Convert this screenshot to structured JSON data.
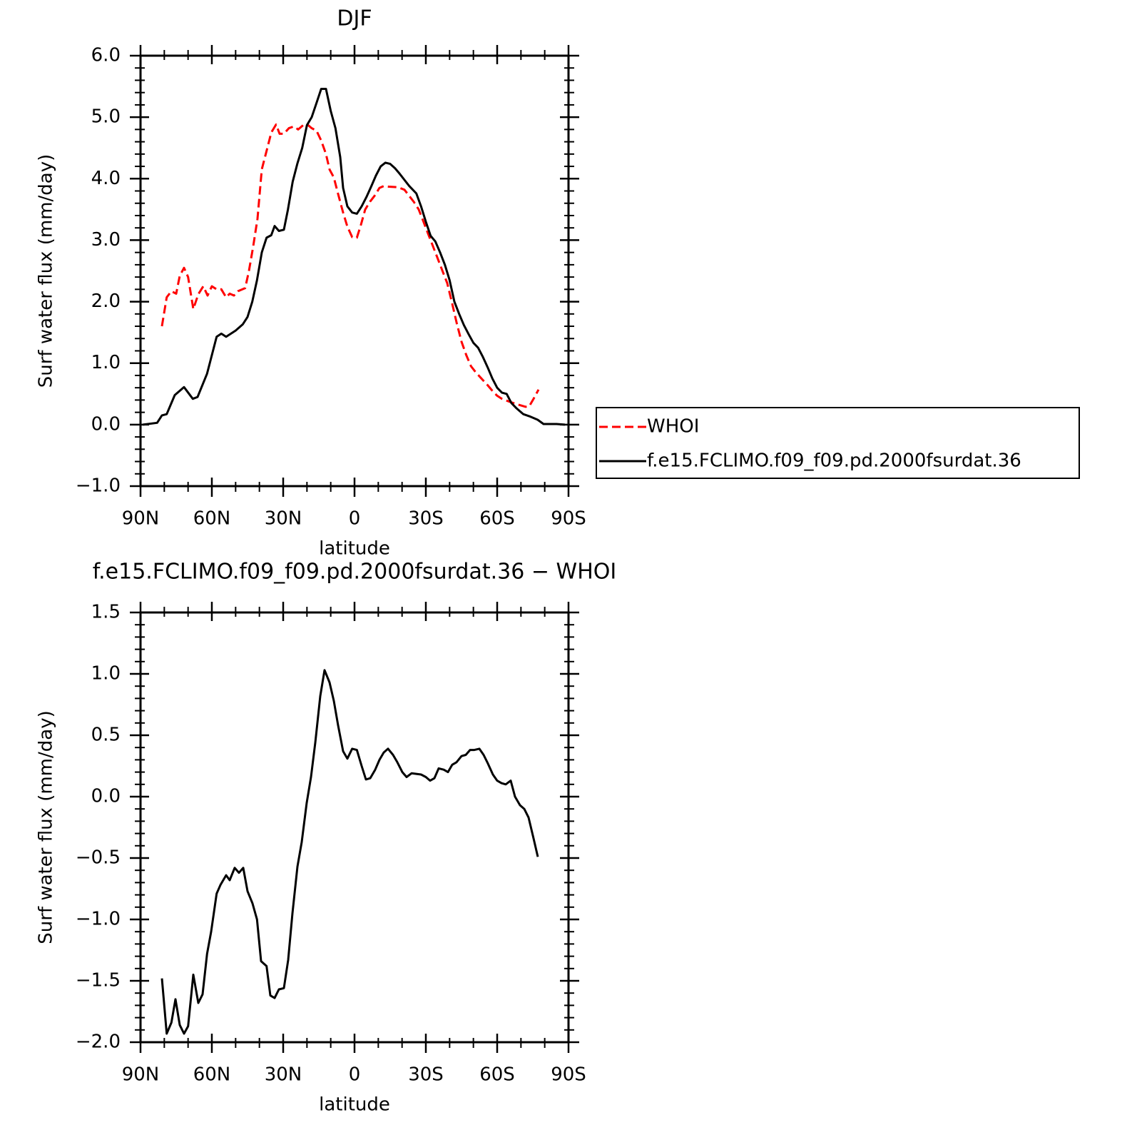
{
  "chart_data": [
    {
      "type": "line",
      "title": "DJF",
      "xlabel": "latitude",
      "ylabel": "Surf water flux (mm/day)",
      "xlim": [
        90,
        -90
      ],
      "xticks": [
        {
          "value": 90,
          "label": "90N"
        },
        {
          "value": 60,
          "label": "60N"
        },
        {
          "value": 30,
          "label": "30N"
        },
        0,
        {
          "value": -30,
          "label": "30S"
        },
        {
          "value": -60,
          "label": "60S"
        },
        {
          "value": -90,
          "label": "90S"
        }
      ],
      "ylim": [
        -1,
        6
      ],
      "yticks": [
        {
          "value": -1,
          "label": "−1.0"
        },
        {
          "value": 0,
          "label": "0.0"
        },
        {
          "value": 1,
          "label": "1.0"
        },
        {
          "value": 2,
          "label": "2.0"
        },
        {
          "value": 3,
          "label": "3.0"
        },
        {
          "value": 4,
          "label": "4.0"
        },
        {
          "value": 5,
          "label": "5.0"
        },
        {
          "value": 6,
          "label": "6.0"
        }
      ],
      "legend": "right",
      "series": [
        {
          "name": "WHOI",
          "color": "#ff0000",
          "dash": true,
          "x": [
            81,
            79,
            77,
            75,
            73.5,
            71.7,
            70,
            67.8,
            65.7,
            63.6,
            61.8,
            60,
            58,
            56,
            54,
            52.5,
            50.7,
            49,
            46,
            44.4,
            42.6,
            40.8,
            39,
            37,
            35,
            33,
            31.5,
            29.7,
            27.6,
            25.5,
            23.7,
            21.6,
            19.8,
            18,
            16,
            14,
            12,
            10.5,
            8.7,
            6.9,
            4.8,
            3,
            1,
            -1,
            -2.7,
            -4.5,
            -6.6,
            -8.4,
            -10.5,
            -12.3,
            -14.4,
            -18.3,
            -21,
            -23,
            -25,
            -27,
            -29,
            -31,
            -33,
            -35,
            -37,
            -39,
            -41,
            -43,
            -45,
            -47,
            -49,
            -51,
            -53.4,
            -55.8,
            -58,
            -60,
            -62,
            -65.4,
            -68.4,
            -72,
            -73.5,
            -75.3,
            -77.4
          ],
          "values": [
            1.6,
            2.07,
            2.17,
            2.13,
            2.42,
            2.55,
            2.4,
            1.88,
            2.12,
            2.25,
            2.1,
            2.25,
            2.2,
            2.2,
            2.07,
            2.13,
            2.1,
            2.17,
            2.22,
            2.5,
            2.9,
            3.35,
            4.15,
            4.45,
            4.75,
            4.88,
            4.73,
            4.73,
            4.82,
            4.85,
            4.8,
            4.87,
            4.88,
            4.82,
            4.78,
            4.62,
            4.4,
            4.15,
            4.02,
            3.75,
            3.45,
            3.22,
            3.05,
            3.04,
            3.25,
            3.5,
            3.63,
            3.72,
            3.85,
            3.88,
            3.87,
            3.86,
            3.82,
            3.72,
            3.62,
            3.5,
            3.3,
            3.1,
            2.9,
            2.7,
            2.5,
            2.3,
            1.98,
            1.65,
            1.35,
            1.13,
            0.95,
            0.85,
            0.75,
            0.65,
            0.55,
            0.47,
            0.42,
            0.37,
            0.33,
            0.29,
            0.3,
            0.42,
            0.57
          ]
        },
        {
          "name": "f.e15.FCLIMO.f09_f09.pd.2000fsurdat.36",
          "color": "#000000",
          "dash": false,
          "x": [
            89,
            83,
            81,
            79,
            75.6,
            71.7,
            68,
            66,
            62,
            58,
            56,
            54,
            50,
            47,
            45,
            43,
            41,
            39,
            37,
            35,
            33.6,
            31.8,
            29.7,
            28,
            26,
            24,
            22,
            20,
            18,
            16,
            14,
            12,
            10,
            8,
            6,
            4.8,
            3,
            1,
            -1,
            -3,
            -5,
            -7,
            -9,
            -11,
            -13,
            -15,
            -17,
            -19,
            -21,
            -23,
            -26,
            -28,
            -30,
            -32,
            -34,
            -36,
            -38,
            -40,
            -42,
            -44,
            -46,
            -48,
            -50,
            -52,
            -54,
            -56,
            -58,
            -60,
            -62,
            -64,
            -66,
            -68,
            -71,
            -74,
            -77,
            -79.5,
            -85,
            -88.5
          ],
          "values": [
            0.0,
            0.03,
            0.15,
            0.17,
            0.48,
            0.61,
            0.42,
            0.45,
            0.83,
            1.43,
            1.48,
            1.43,
            1.53,
            1.63,
            1.75,
            2.0,
            2.35,
            2.8,
            3.04,
            3.08,
            3.23,
            3.15,
            3.17,
            3.5,
            3.95,
            4.25,
            4.5,
            4.87,
            5.0,
            5.23,
            5.46,
            5.46,
            5.1,
            4.82,
            4.35,
            3.85,
            3.55,
            3.45,
            3.43,
            3.55,
            3.7,
            3.87,
            4.05,
            4.2,
            4.26,
            4.24,
            4.17,
            4.08,
            3.98,
            3.88,
            3.76,
            3.55,
            3.3,
            3.07,
            2.98,
            2.8,
            2.6,
            2.35,
            2.0,
            1.8,
            1.62,
            1.47,
            1.33,
            1.25,
            1.1,
            0.93,
            0.75,
            0.6,
            0.52,
            0.5,
            0.35,
            0.27,
            0.17,
            0.13,
            0.08,
            0.01,
            0.01,
            0.0
          ]
        }
      ]
    },
    {
      "type": "line",
      "title": "f.e15.FCLIMO.f09_f09.pd.2000fsurdat.36 − WHOI",
      "xlabel": "latitude",
      "ylabel": "Surf water flux (mm/day)",
      "xlim": [
        90,
        -90
      ],
      "xticks": [
        {
          "value": 90,
          "label": "90N"
        },
        {
          "value": 60,
          "label": "60N"
        },
        {
          "value": 30,
          "label": "30N"
        },
        0,
        {
          "value": -30,
          "label": "30S"
        },
        {
          "value": -60,
          "label": "60S"
        },
        {
          "value": -90,
          "label": "90S"
        }
      ],
      "ylim": [
        -2,
        1.5
      ],
      "yticks": [
        {
          "value": -2,
          "label": "−2.0"
        },
        {
          "value": -1.5,
          "label": "−1.5"
        },
        {
          "value": -1,
          "label": "−1.0"
        },
        {
          "value": -0.5,
          "label": "−0.5"
        },
        {
          "value": 0,
          "label": "0.0"
        },
        0.5,
        {
          "value": 1,
          "label": "1.0"
        },
        1.5
      ],
      "series": [
        {
          "color": "#000000",
          "dash": false,
          "x": [
            81,
            79,
            77,
            75.3,
            73.5,
            71.7,
            70,
            67.8,
            65.7,
            63.9,
            62,
            60.3,
            58,
            56.4,
            54,
            52.5,
            50.4,
            48.6,
            46.8,
            45,
            42.9,
            41,
            39.3,
            37,
            35.4,
            33.6,
            31.8,
            29.7,
            27.9,
            26.1,
            24,
            22.2,
            20.1,
            18.3,
            16.5,
            14.4,
            12.6,
            10.5,
            8.7,
            6.9,
            4.8,
            3,
            1,
            -1,
            -3,
            -4.8,
            -6.6,
            -8.7,
            -10.5,
            -12.3,
            -14.1,
            -16.2,
            -18,
            -20.1,
            -21.9,
            -24,
            -28,
            -30,
            -31.8,
            -33.6,
            -35.4,
            -37.5,
            -39.3,
            -41.1,
            -42.9,
            -45,
            -46.8,
            -48.6,
            -50.4,
            -52.5,
            -54.3,
            -56.1,
            -58.2,
            -60,
            -61.8,
            -63.6,
            -65.7,
            -67.5,
            -69.6,
            -71.4,
            -73.2,
            -75.3,
            -77.1
          ],
          "values": [
            -1.48,
            -1.93,
            -1.84,
            -1.65,
            -1.86,
            -1.93,
            -1.87,
            -1.45,
            -1.68,
            -1.61,
            -1.28,
            -1.1,
            -0.79,
            -0.72,
            -0.64,
            -0.68,
            -0.58,
            -0.62,
            -0.58,
            -0.77,
            -0.87,
            -1.0,
            -1.34,
            -1.38,
            -1.62,
            -1.64,
            -1.57,
            -1.56,
            -1.33,
            -0.95,
            -0.57,
            -0.37,
            -0.05,
            0.16,
            0.44,
            0.82,
            1.03,
            0.93,
            0.78,
            0.58,
            0.37,
            0.31,
            0.39,
            0.38,
            0.25,
            0.14,
            0.15,
            0.22,
            0.3,
            0.36,
            0.39,
            0.34,
            0.28,
            0.2,
            0.16,
            0.19,
            0.18,
            0.16,
            0.13,
            0.15,
            0.23,
            0.22,
            0.2,
            0.26,
            0.28,
            0.33,
            0.34,
            0.38,
            0.38,
            0.39,
            0.34,
            0.27,
            0.18,
            0.13,
            0.11,
            0.1,
            0.13,
            0.0,
            -0.07,
            -0.1,
            -0.17,
            -0.34,
            -0.49
          ]
        }
      ]
    }
  ]
}
